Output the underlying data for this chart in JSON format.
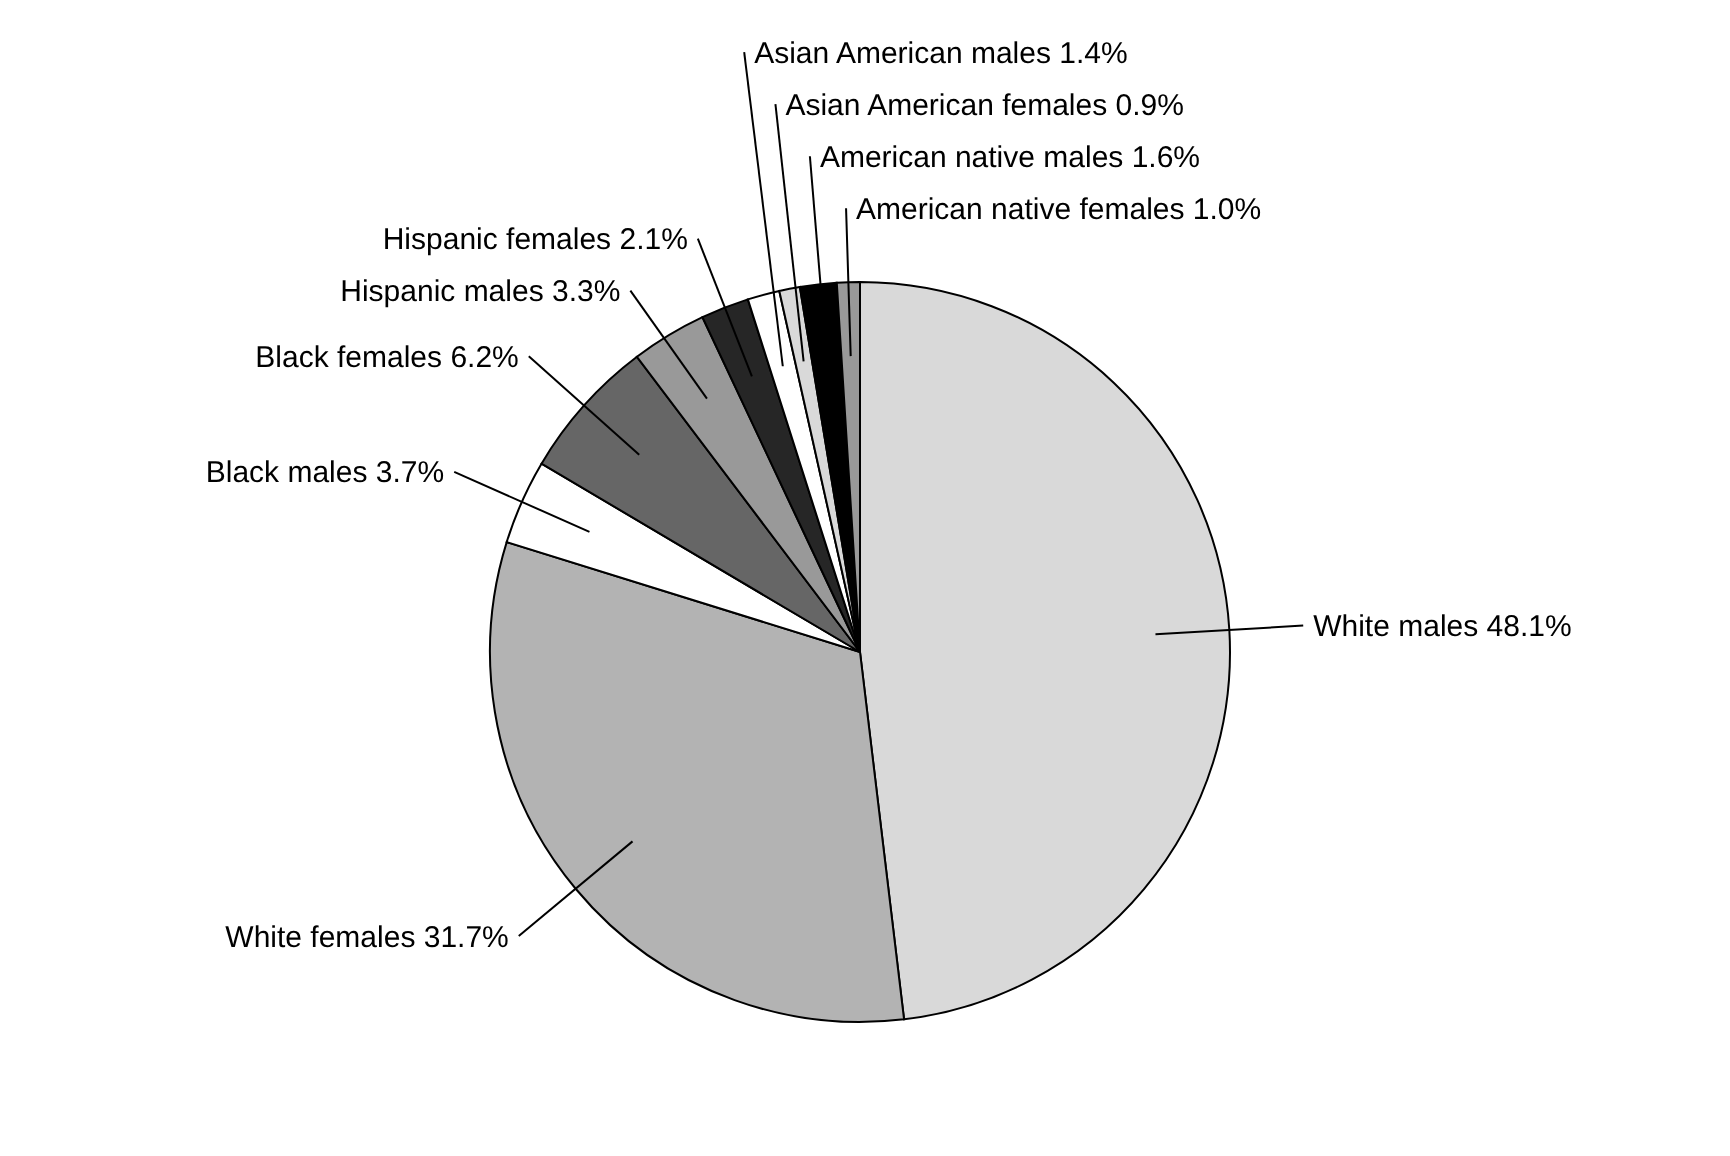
{
  "chart_data": {
    "type": "pie",
    "categories": [
      "White males",
      "White females",
      "Black males",
      "Black females",
      "Hispanic males",
      "Hispanic females",
      "Asian American males",
      "Asian American females",
      "American native males",
      "American native females"
    ],
    "values": [
      48.1,
      31.7,
      3.7,
      6.2,
      3.3,
      2.1,
      1.4,
      0.9,
      1.6,
      1.0
    ],
    "value_labels": [
      "48.1%",
      "31.7%",
      "3.7%",
      "6.2%",
      "3.3%",
      "2.1%",
      "1.4%",
      "0.9%",
      "1.6%",
      "1.0%"
    ],
    "colors": [
      "#d9d9d9",
      "#b3b3b3",
      "#ffffff",
      "#666666",
      "#999999",
      "#262626",
      "#ffffff",
      "#d9d9d9",
      "#000000",
      "#999999"
    ]
  }
}
